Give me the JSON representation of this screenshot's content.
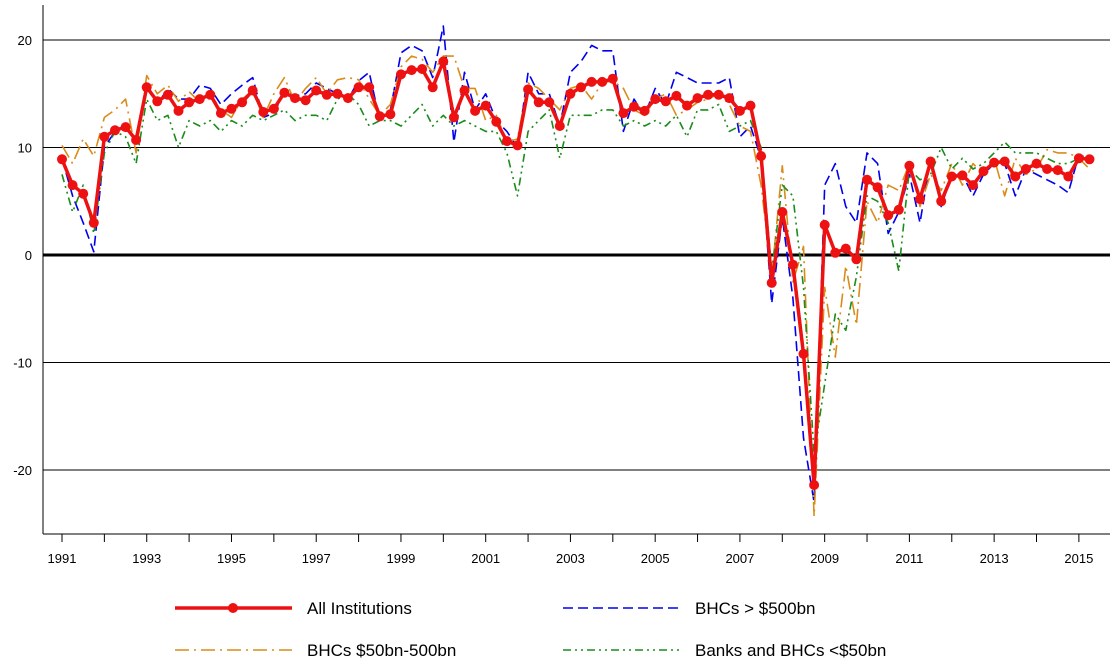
{
  "chart_data": {
    "type": "line",
    "title": "",
    "xlabel": "",
    "ylabel": "",
    "xlim": [
      1990.75,
      2015.0
    ],
    "ylim": [
      -25,
      23
    ],
    "grid": "horizontal",
    "legend_position": "bottom",
    "x_tick_labels": [
      "1991",
      "1993",
      "1995",
      "1997",
      "1999",
      "2001",
      "2003",
      "2005",
      "2007",
      "2009",
      "2011",
      "2013",
      "2015"
    ],
    "y_tick_labels": [
      "20",
      "10",
      "0",
      "-10",
      "-20"
    ],
    "colors": {
      "all_institutions": "#ee1111",
      "bhcs_gt_500bn": "#0000ee",
      "bhcs_50_500bn": "#d98c1a",
      "banks_lt_50bn": "#1a8c1a",
      "grid": "#000000"
    },
    "x_start": 1991.0,
    "x_step": 0.25,
    "series": [
      {
        "name": "All Institutions",
        "color": "#ee1111",
        "style": "solid-marker",
        "values": [
          8.9,
          6.5,
          5.7,
          3.0,
          11.0,
          11.6,
          11.9,
          10.7,
          15.6,
          14.3,
          14.9,
          13.4,
          14.2,
          14.5,
          14.9,
          13.2,
          13.6,
          14.2,
          15.3,
          13.3,
          13.6,
          15.1,
          14.6,
          14.4,
          15.3,
          14.9,
          15.0,
          14.6,
          15.6,
          15.6,
          12.9,
          13.1,
          16.8,
          17.2,
          17.3,
          15.6,
          18.0,
          12.8,
          15.3,
          13.4,
          13.9,
          12.4,
          10.6,
          10.2,
          15.4,
          14.2,
          14.2,
          12.0,
          15.0,
          15.6,
          16.1,
          16.1,
          16.4,
          13.2,
          13.8,
          13.4,
          14.5,
          14.3,
          14.8,
          13.9,
          14.6,
          14.9,
          14.9,
          14.6,
          13.4,
          13.9,
          9.2,
          -2.6,
          4.0,
          -0.9,
          -9.2,
          -21.4,
          2.8,
          0.2,
          0.6,
          -0.4,
          7.0,
          6.3,
          3.7,
          4.2,
          8.3,
          5.2,
          8.7,
          5.0,
          7.3,
          7.4,
          6.5,
          7.8,
          8.6,
          8.7,
          7.3,
          8.0,
          8.5,
          8.0,
          7.9,
          7.3,
          9.0,
          8.9
        ]
      },
      {
        "name": "BHCs > $500bn",
        "color": "#0000ee",
        "style": "dashed",
        "values": [
          9.0,
          5.5,
          3.0,
          0.3,
          10.0,
          11.5,
          12.0,
          10.5,
          16.0,
          14.0,
          15.5,
          14.5,
          14.5,
          15.8,
          15.5,
          14.0,
          15.0,
          15.8,
          16.5,
          12.8,
          13.2,
          15.2,
          14.8,
          15.0,
          16.0,
          15.5,
          15.0,
          14.5,
          16.2,
          17.0,
          12.5,
          13.5,
          18.8,
          19.5,
          19.0,
          16.5,
          21.3,
          10.5,
          17.0,
          13.5,
          15.0,
          12.5,
          11.5,
          10.0,
          17.0,
          15.0,
          15.0,
          12.0,
          17.0,
          18.0,
          19.5,
          19.0,
          19.0,
          11.5,
          14.5,
          13.0,
          15.5,
          14.0,
          17.0,
          16.5,
          16.0,
          16.0,
          16.0,
          16.5,
          11.0,
          12.0,
          9.0,
          -4.5,
          3.5,
          -4.0,
          -17.0,
          -23.0,
          6.5,
          8.5,
          4.5,
          3.0,
          9.5,
          8.5,
          2.0,
          4.0,
          7.5,
          3.0,
          9.0,
          4.5,
          7.5,
          7.5,
          5.5,
          7.5,
          8.5,
          8.5,
          5.5,
          8.0,
          7.5,
          7.0,
          6.5,
          5.8,
          9.3,
          9.0
        ]
      },
      {
        "name": "BHCs $50bn-500bn",
        "color": "#d98c1a",
        "style": "dash-dot",
        "values": [
          10.2,
          8.5,
          10.8,
          9.2,
          12.8,
          13.5,
          14.5,
          9.5,
          16.7,
          15.0,
          15.8,
          14.3,
          15.2,
          14.2,
          15.0,
          13.5,
          12.8,
          14.5,
          15.3,
          12.8,
          15.0,
          16.5,
          14.2,
          15.5,
          16.5,
          15.0,
          16.3,
          16.5,
          16.3,
          14.5,
          13.0,
          14.0,
          17.5,
          18.5,
          18.2,
          17.0,
          18.5,
          18.5,
          15.5,
          15.5,
          12.5,
          13.0,
          10.5,
          10.8,
          16.0,
          15.5,
          14.5,
          13.5,
          15.5,
          15.8,
          14.5,
          16.0,
          16.2,
          15.5,
          13.5,
          13.0,
          14.5,
          15.0,
          13.0,
          13.5,
          14.2,
          14.5,
          15.0,
          14.0,
          12.0,
          11.5,
          6.5,
          -2.0,
          8.3,
          -2.5,
          0.8,
          -24.3,
          -3.0,
          -9.5,
          -1.0,
          -6.5,
          5.0,
          3.0,
          6.5,
          6.0,
          8.5,
          4.5,
          7.5,
          6.0,
          8.5,
          6.5,
          8.5,
          7.5,
          9.0,
          5.5,
          9.0,
          7.5,
          8.0,
          9.8,
          9.5,
          9.5,
          9.0,
          8.0
        ]
      },
      {
        "name": "Banks and BHCs <$50bn",
        "color": "#1a8c1a",
        "style": "dash-dot-dot",
        "values": [
          7.5,
          4.0,
          6.5,
          2.0,
          9.5,
          11.5,
          11.0,
          8.5,
          14.5,
          12.5,
          13.0,
          10.0,
          12.5,
          12.0,
          12.5,
          11.5,
          12.5,
          12.0,
          13.0,
          12.5,
          13.0,
          13.5,
          12.5,
          13.0,
          13.0,
          12.5,
          14.5,
          15.0,
          14.0,
          12.0,
          12.5,
          12.5,
          12.0,
          13.0,
          14.0,
          12.0,
          13.0,
          12.0,
          12.5,
          12.0,
          11.5,
          11.5,
          9.5,
          5.5,
          11.5,
          12.5,
          13.5,
          9.0,
          13.0,
          13.0,
          13.0,
          13.5,
          13.5,
          12.0,
          12.5,
          12.0,
          12.5,
          12.0,
          13.0,
          11.0,
          13.5,
          13.5,
          14.0,
          11.5,
          12.0,
          12.5,
          10.0,
          -1.5,
          6.5,
          5.5,
          -3.0,
          -18.5,
          -12.0,
          -5.5,
          -7.0,
          -2.0,
          5.5,
          5.0,
          3.0,
          -1.5,
          8.0,
          7.0,
          7.5,
          10.0,
          8.0,
          9.0,
          8.0,
          8.5,
          9.5,
          10.5,
          9.5,
          9.5,
          9.5,
          9.0,
          8.5,
          8.5,
          9.0,
          9.0
        ]
      }
    ]
  },
  "legend": {
    "items": [
      {
        "label": "All Institutions"
      },
      {
        "label": "BHCs > $500bn"
      },
      {
        "label": "BHCs $50bn-500bn"
      },
      {
        "label": "Banks and BHCs <$50bn"
      }
    ]
  }
}
